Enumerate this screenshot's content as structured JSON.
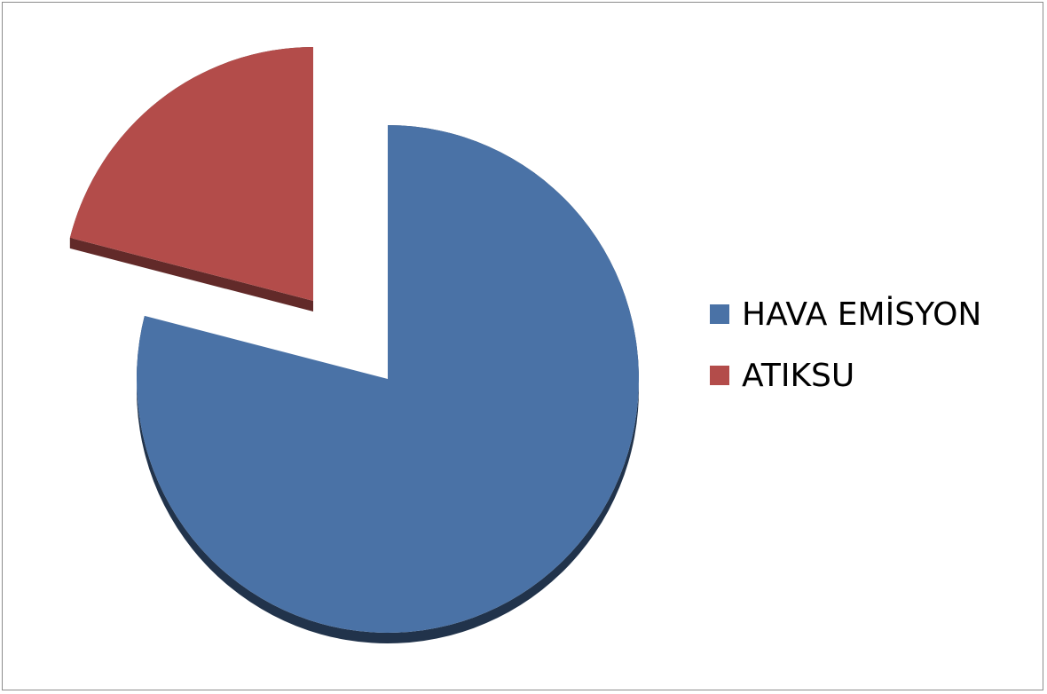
{
  "chart_data": {
    "type": "pie",
    "title": "",
    "slices": [
      {
        "label": "HAVA EMİSYON",
        "value": 79,
        "color": "#4a72a6",
        "exploded": false
      },
      {
        "label": "ATIKSU",
        "value": 21,
        "color": "#b34c4a",
        "exploded": true
      }
    ],
    "style": "3d",
    "legend_position": "right"
  }
}
